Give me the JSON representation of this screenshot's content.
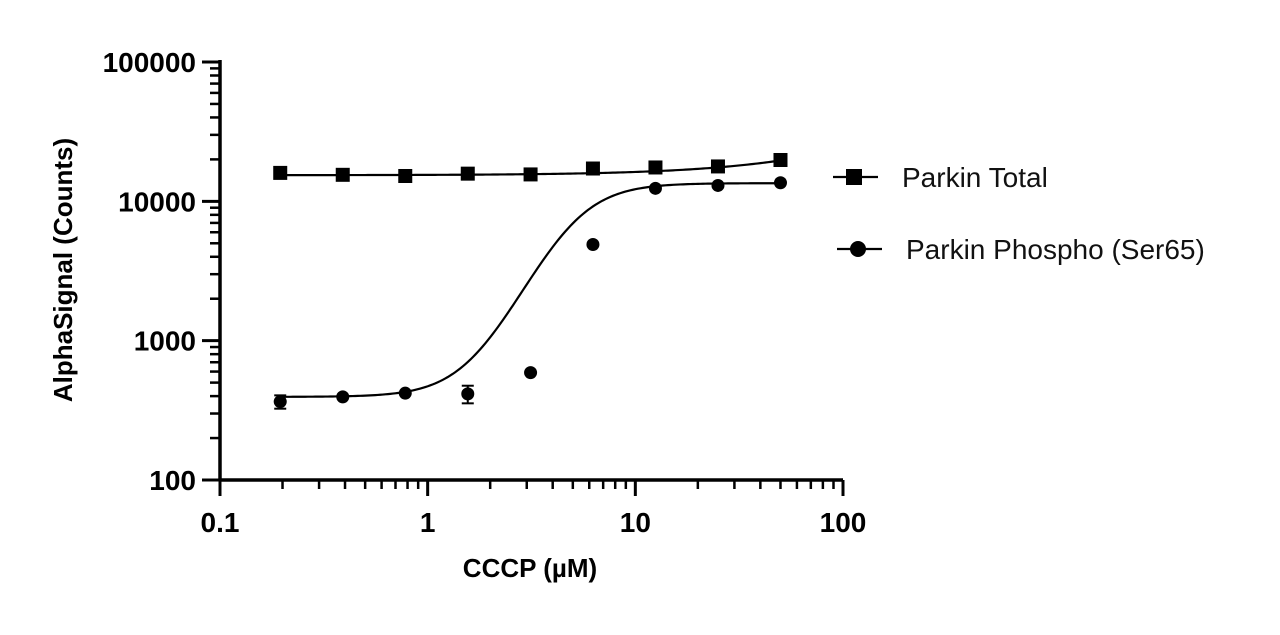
{
  "chart_data": {
    "type": "scatter",
    "title": "",
    "xlabel": "CCCP (µM)",
    "ylabel": "AlphaSignal (Counts)",
    "x_scale": "log",
    "y_scale": "log",
    "xlim": [
      0.1,
      100
    ],
    "ylim": [
      100,
      100000
    ],
    "x_ticks": [
      0.1,
      1,
      10,
      100
    ],
    "x_tick_labels": [
      "0.1",
      "1",
      "10",
      "100"
    ],
    "y_ticks": [
      100,
      1000,
      10000,
      100000
    ],
    "y_tick_labels": [
      "100",
      "1000",
      "10000",
      "100000"
    ],
    "grid": false,
    "legend_position": "right",
    "series": [
      {
        "name": "Parkin Total",
        "marker": "square",
        "color": "#000000",
        "x": [
          0.195,
          0.39,
          0.78,
          1.56,
          3.13,
          6.25,
          12.5,
          25,
          50
        ],
        "y": [
          16000,
          15500,
          15200,
          15800,
          15600,
          17200,
          17500,
          17800,
          19800
        ],
        "fit": {
          "model": "linear",
          "intercept": 15400,
          "slope": 85
        }
      },
      {
        "name": "Parkin Phospho (Ser65)",
        "marker": "circle",
        "color": "#000000",
        "x": [
          0.195,
          0.39,
          0.78,
          1.56,
          3.13,
          6.25,
          12.5,
          25,
          50
        ],
        "y": [
          365,
          395,
          420,
          415,
          590,
          4900,
          12400,
          13000,
          13600
        ],
        "y_err": [
          40,
          0,
          0,
          60,
          0,
          0,
          0,
          0,
          0
        ],
        "fit": {
          "model": "sigmoidal",
          "bottom": 395,
          "top": 13500,
          "ec50": 5.0,
          "hill": 3.2
        }
      }
    ]
  }
}
